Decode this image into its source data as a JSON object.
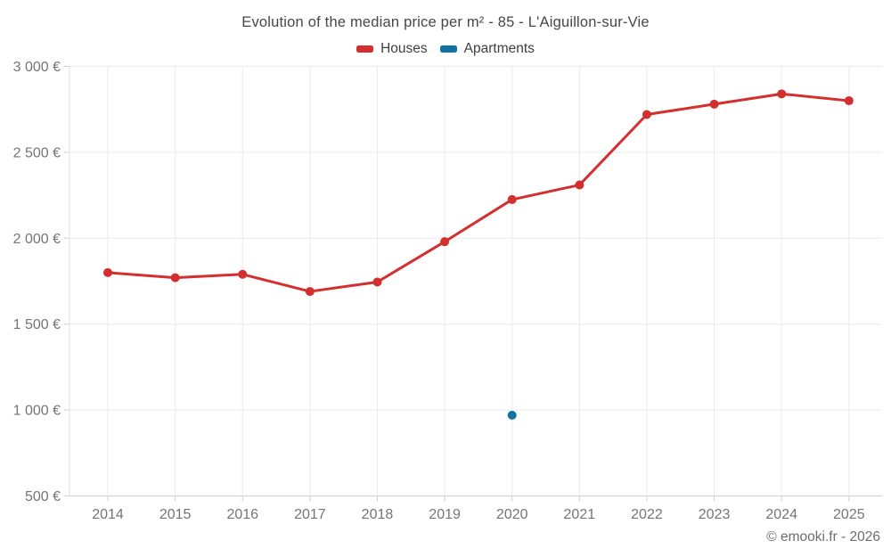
{
  "chart_data": {
    "type": "line",
    "title": "Evolution of the median price per m² - 85 - L'Aiguillon-sur-Vie",
    "categories": [
      "2014",
      "2015",
      "2016",
      "2017",
      "2018",
      "2019",
      "2020",
      "2021",
      "2022",
      "2023",
      "2024",
      "2025"
    ],
    "series": [
      {
        "name": "Houses",
        "color": "#d32f2f",
        "values": [
          1800,
          1770,
          1790,
          1690,
          1745,
          1980,
          2225,
          2310,
          2720,
          2780,
          2840,
          2800
        ]
      },
      {
        "name": "Apartments",
        "color": "#1172a3",
        "values": [
          null,
          null,
          null,
          null,
          null,
          null,
          970,
          null,
          null,
          null,
          null,
          null
        ]
      }
    ],
    "xlabel": "",
    "ylabel": "",
    "ylim": [
      500,
      3000
    ],
    "y_ticks": [
      500,
      1000,
      1500,
      2000,
      2500,
      3000
    ],
    "y_tick_labels": [
      "500 €",
      "1 000 €",
      "1 500 €",
      "2 000 €",
      "2 500 €",
      "3 000 €"
    ],
    "grid": true,
    "legend_position": "top",
    "currency_suffix": "€"
  },
  "footer": {
    "copyright": "© emooki.fr - 2026"
  }
}
